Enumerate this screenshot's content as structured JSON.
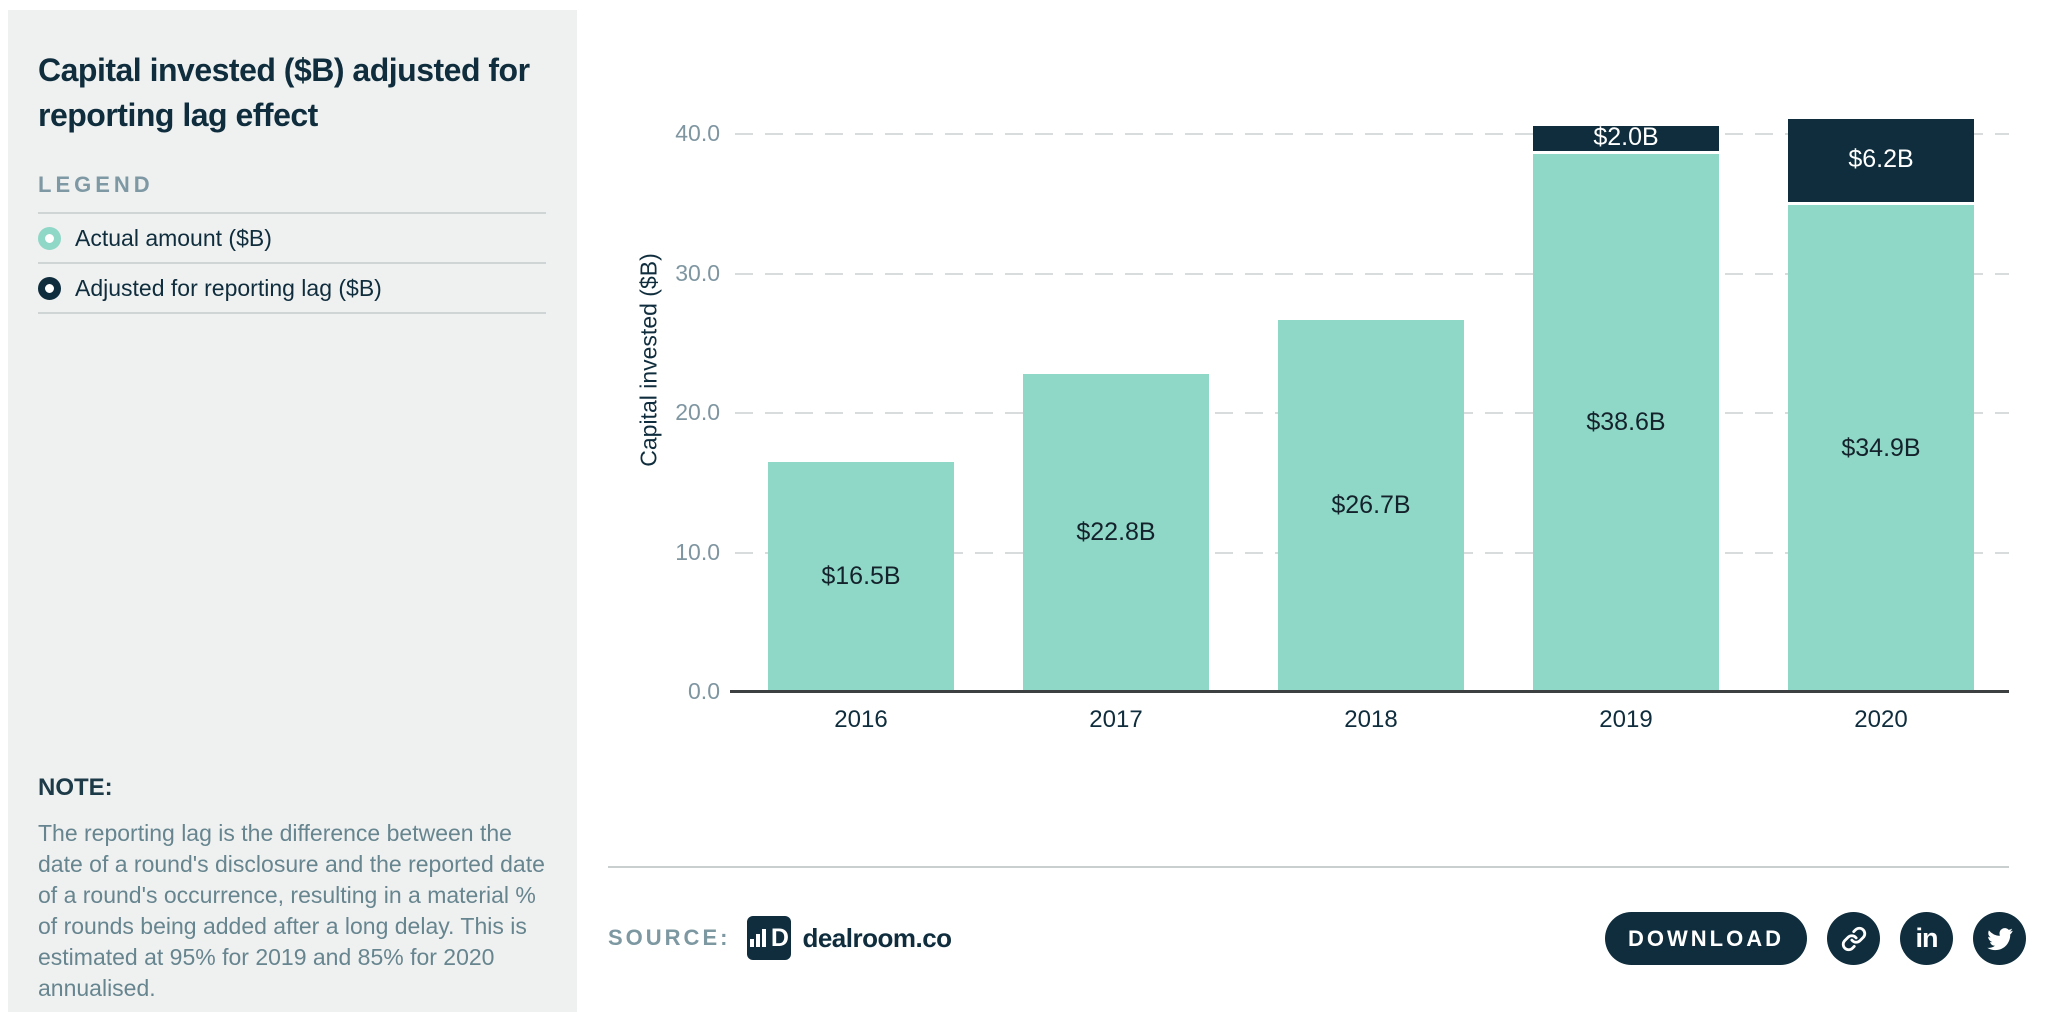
{
  "sidebar": {
    "title": "Capital invested ($B) adjusted for reporting lag effect",
    "legend_heading": "LEGEND",
    "legend": {
      "items": [
        {
          "label": "Actual amount ($B)",
          "color": "#8fd7c7"
        },
        {
          "label": "Adjusted for reporting lag ($B)",
          "color": "#0f2d3c"
        }
      ]
    },
    "note_heading": "NOTE:",
    "note_text": "The reporting lag is the difference between the date of a round's disclosure and the reported date of a round's occurrence, resulting in a material % of rounds being added after a long delay. This is estimated at 95% for 2019 and 85% for 2020 annualised."
  },
  "footer": {
    "source_label": "SOURCE:",
    "source_name": "dealroom.co",
    "logo_glyph": "D",
    "download_label": "DOWNLOAD",
    "linkedin_glyph": "in",
    "icons": [
      "link-icon",
      "linkedin-icon",
      "twitter-icon"
    ]
  },
  "colors": {
    "teal": "#8fd7c7",
    "navy": "#0f2d3c",
    "sidebar_bg": "#eff1f1",
    "gridline": "#d9dcdc",
    "axis_line": "#3d4041",
    "tick_label": "#7f96a1",
    "legend_heading": "#7e99a4",
    "note_body": "#67858f"
  },
  "chart_data": {
    "type": "bar",
    "stacked": true,
    "title": "Capital invested ($B) adjusted for reporting lag effect",
    "categories": [
      "2016",
      "2017",
      "2018",
      "2019",
      "2020"
    ],
    "series": [
      {
        "name": "Actual amount ($B)",
        "color": "#8fd7c7",
        "label_color": "#14232b",
        "values": [
          16.5,
          22.8,
          26.7,
          38.6,
          34.9
        ],
        "labels": [
          "$16.5B",
          "$22.8B",
          "$26.7B",
          "$38.6B",
          "$34.9B"
        ]
      },
      {
        "name": "Adjusted for reporting lag ($B)",
        "color": "#0f2d3c",
        "label_color": "#ffffff",
        "values": [
          0,
          0,
          0,
          2.0,
          6.2
        ],
        "labels": [
          "",
          "",
          "",
          "$2.0B",
          "$6.2B"
        ]
      }
    ],
    "xlabel": "",
    "ylabel": "Capital invested ($B)",
    "ylim": [
      0,
      40
    ],
    "yticks": [
      0,
      10,
      20,
      30,
      40
    ],
    "ytick_labels": [
      "0.0",
      "10.0",
      "20.0",
      "30.0",
      "40.0"
    ],
    "grid": "dashed horizontal",
    "legend_position": "left panel"
  }
}
